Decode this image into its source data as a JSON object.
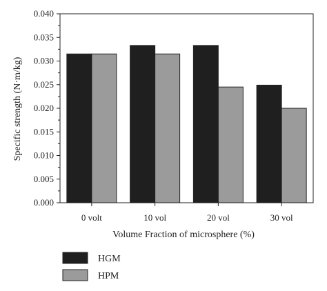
{
  "chart_data": {
    "type": "bar",
    "categories": [
      "0 volt",
      "10 vol",
      "20 vol",
      "30 vol"
    ],
    "series": [
      {
        "name": "HGM",
        "values": [
          0.0315,
          0.0333,
          0.0333,
          0.0249
        ],
        "color": "#1f1f1f"
      },
      {
        "name": "HPM",
        "values": [
          0.0315,
          0.0315,
          0.0245,
          0.02
        ],
        "color": "#9b9b9b"
      }
    ],
    "title": "",
    "xlabel": "Volume Fraction of microsphere (%)",
    "ylabel": "Specific strength (N·m/kg)",
    "ylim": [
      0,
      0.04
    ],
    "yticks": [
      "0.000",
      "0.005",
      "0.010",
      "0.015",
      "0.020",
      "0.025",
      "0.030",
      "0.035",
      "0.040"
    ],
    "grid": false,
    "legend_position": "bottom-left"
  }
}
